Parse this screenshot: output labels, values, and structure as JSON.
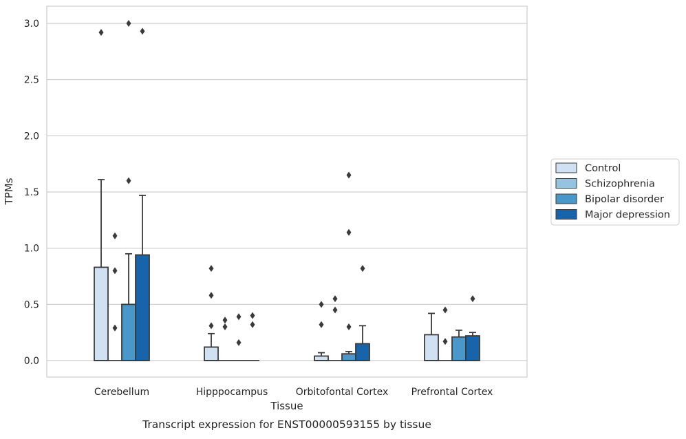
{
  "caption": "Transcript expression for ENST00000593155 by tissue",
  "chart_data": {
    "type": "box",
    "xlabel": "Tissue",
    "ylabel": "TPMs",
    "categories": [
      "Cerebellum",
      "Hipppocampus",
      "Orbitofontal Cortex",
      "Prefrontal Cortex"
    ],
    "ylim": [
      -0.15,
      3.15
    ],
    "yticks": [
      "0.0",
      "0.5",
      "1.0",
      "1.5",
      "2.0",
      "2.5",
      "3.0"
    ],
    "grid": "horizontal",
    "legend_position": "right",
    "series": [
      {
        "name": "Control",
        "color": "#d0e1f2",
        "boxes": [
          {
            "q1": 0.0,
            "median": 0.0,
            "q3": 0.83,
            "whisker_low": 0.0,
            "whisker_high": 1.61,
            "outliers": [
              2.92
            ]
          },
          {
            "q1": 0.0,
            "median": 0.0,
            "q3": 0.12,
            "whisker_low": 0.0,
            "whisker_high": 0.24,
            "outliers": [
              0.82,
              0.58,
              0.31
            ]
          },
          {
            "q1": 0.0,
            "median": 0.0,
            "q3": 0.04,
            "whisker_low": 0.0,
            "whisker_high": 0.07,
            "outliers": [
              0.5,
              0.32
            ]
          },
          {
            "q1": 0.0,
            "median": 0.0,
            "q3": 0.23,
            "whisker_low": 0.0,
            "whisker_high": 0.42,
            "outliers": []
          }
        ]
      },
      {
        "name": "Schizophrenia",
        "color": "#94c4df",
        "boxes": [
          {
            "q1": 0.0,
            "median": 0.0,
            "q3": 0.0,
            "whisker_low": 0.0,
            "whisker_high": 0.0,
            "outliers": [
              1.11,
              0.8,
              0.29
            ]
          },
          {
            "q1": 0.0,
            "median": 0.0,
            "q3": 0.0,
            "whisker_low": 0.0,
            "whisker_high": 0.0,
            "outliers": [
              0.36,
              0.3
            ]
          },
          {
            "q1": 0.0,
            "median": 0.0,
            "q3": 0.0,
            "whisker_low": 0.0,
            "whisker_high": 0.0,
            "outliers": [
              0.55,
              0.45
            ]
          },
          {
            "q1": 0.0,
            "median": 0.0,
            "q3": 0.0,
            "whisker_low": 0.0,
            "whisker_high": 0.0,
            "outliers": [
              0.45,
              0.17
            ]
          }
        ]
      },
      {
        "name": "Bipolar disorder",
        "color": "#4a98c9",
        "boxes": [
          {
            "q1": 0.0,
            "median": 0.0,
            "q3": 0.5,
            "whisker_low": 0.0,
            "whisker_high": 0.95,
            "outliers": [
              3.0,
              1.6
            ]
          },
          {
            "q1": 0.0,
            "median": 0.0,
            "q3": 0.0,
            "whisker_low": 0.0,
            "whisker_high": 0.0,
            "outliers": [
              0.39,
              0.16
            ]
          },
          {
            "q1": 0.0,
            "median": 0.0,
            "q3": 0.06,
            "whisker_low": 0.0,
            "whisker_high": 0.08,
            "outliers": [
              1.65,
              1.14,
              0.3
            ]
          },
          {
            "q1": 0.0,
            "median": 0.0,
            "q3": 0.21,
            "whisker_low": 0.0,
            "whisker_high": 0.27,
            "outliers": []
          }
        ]
      },
      {
        "name": "Major depression",
        "color": "#1764ab",
        "boxes": [
          {
            "q1": 0.0,
            "median": 0.0,
            "q3": 0.94,
            "whisker_low": 0.0,
            "whisker_high": 1.47,
            "outliers": [
              2.93
            ]
          },
          {
            "q1": 0.0,
            "median": 0.0,
            "q3": 0.0,
            "whisker_low": 0.0,
            "whisker_high": 0.0,
            "outliers": [
              0.4,
              0.32
            ]
          },
          {
            "q1": 0.0,
            "median": 0.0,
            "q3": 0.15,
            "whisker_low": 0.0,
            "whisker_high": 0.31,
            "outliers": [
              0.82
            ]
          },
          {
            "q1": 0.0,
            "median": 0.0,
            "q3": 0.22,
            "whisker_low": 0.0,
            "whisker_high": 0.25,
            "outliers": [
              0.55
            ]
          }
        ]
      }
    ]
  }
}
